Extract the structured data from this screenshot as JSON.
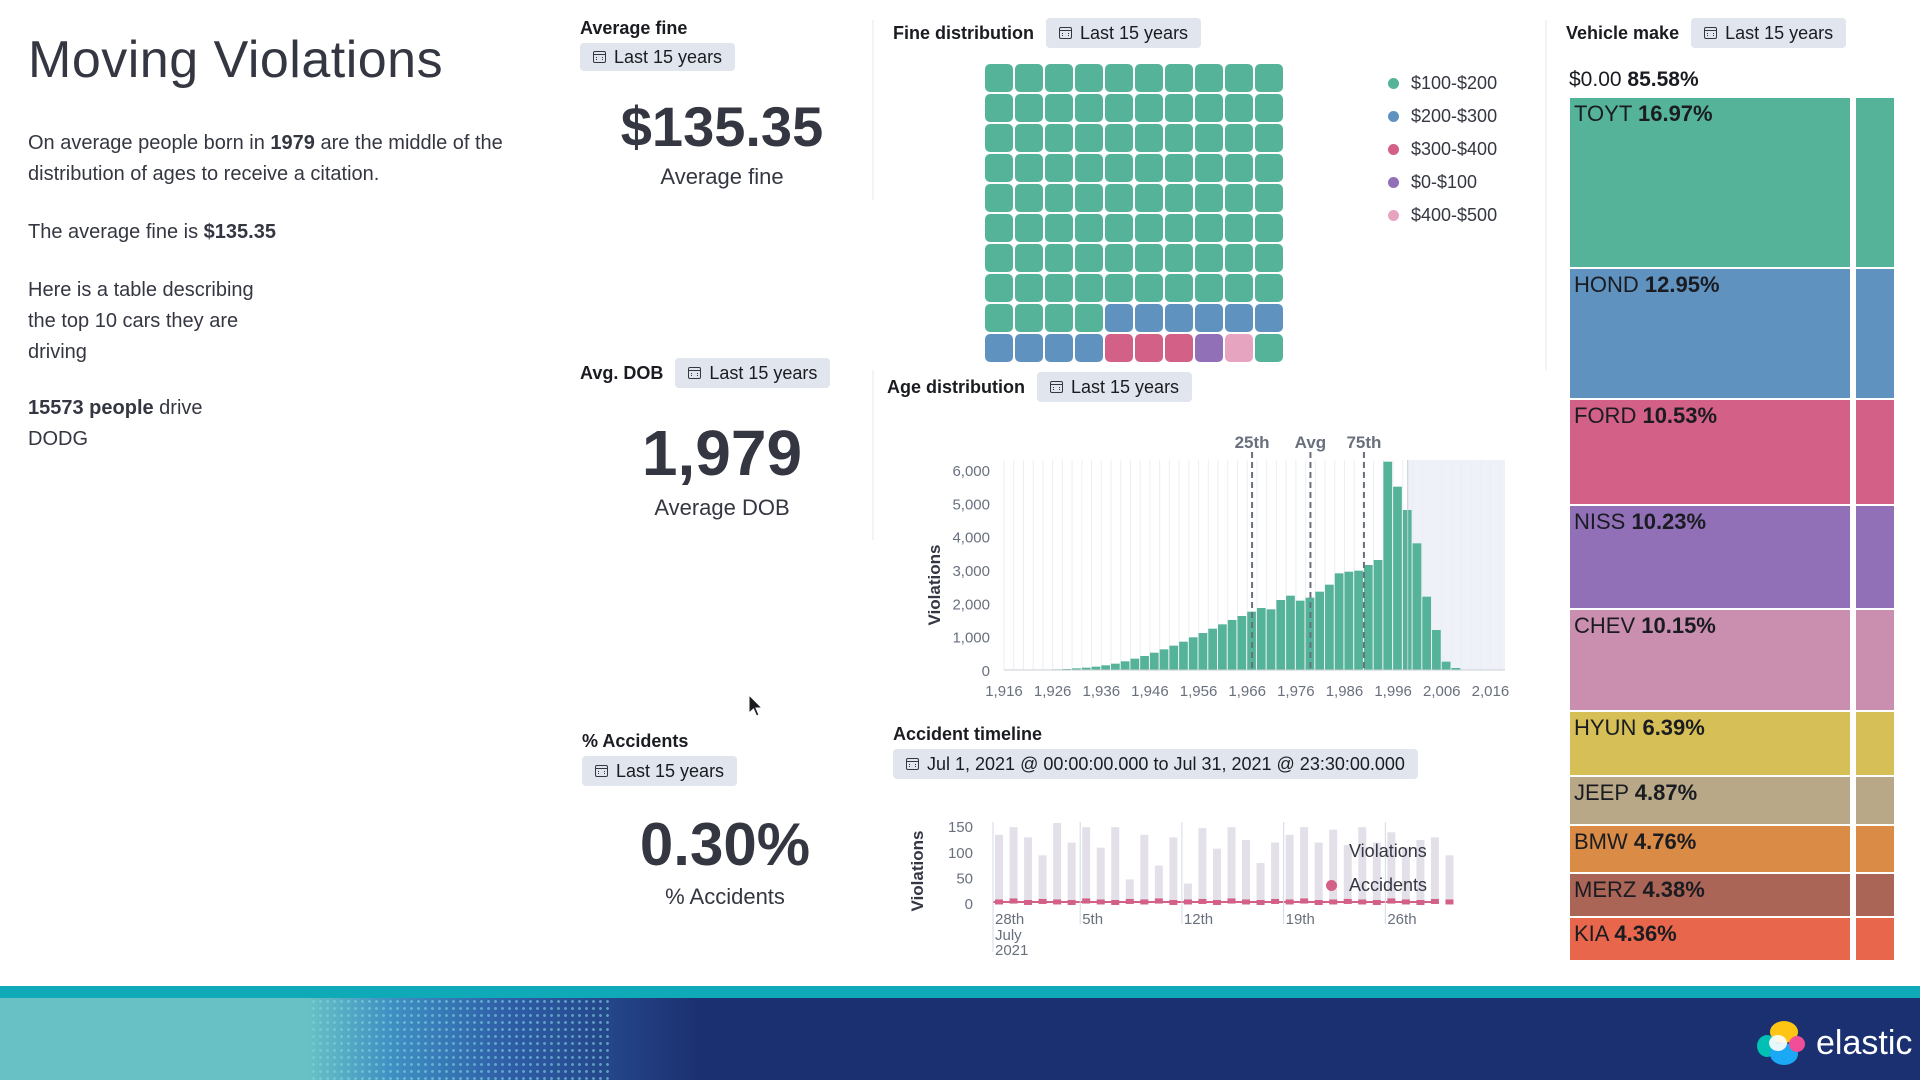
{
  "markdown": {
    "title": "Moving Violations",
    "p1_pre": "On average people born in ",
    "p1_year": "1979",
    "p1_post": " are the middle of the distribution of ages to receive a citation.",
    "p2_pre": "The average fine is ",
    "p2_value": "$135.35",
    "p3": "Here is a table describing the top 10 cars they are driving",
    "p4_bold": "15573 people",
    "p4_post": " drive DODG"
  },
  "panels": {
    "avg_fine": {
      "title": "Average fine",
      "badge": "Last 15 years",
      "value": "$135.35",
      "label": "Average fine"
    },
    "avg_dob": {
      "title": "Avg. DOB",
      "badge": "Last 15 years",
      "value": "1,979",
      "label": "Average DOB"
    },
    "pct_accidents": {
      "title": "% Accidents",
      "badge": "Last 15 years",
      "value": "0.30%",
      "label": "% Accidents"
    },
    "fine_dist": {
      "title": "Fine distribution",
      "badge": "Last 15 years"
    },
    "age_dist": {
      "title": "Age distribution",
      "badge": "Last 15 years"
    },
    "accident_timeline": {
      "title": "Accident timeline",
      "badge": "Jul 1, 2021 @ 00:00:00.000 to Jul 31, 2021 @ 23:30:00.000"
    },
    "vehicle_make": {
      "title": "Vehicle make",
      "badge": "Last 15 years"
    }
  },
  "footer": {
    "logo_text": "elastic"
  },
  "colors": {
    "teal": "#54b399",
    "blue": "#6092c0",
    "red": "#d36086",
    "purple": "#9170b8",
    "pink": "#ca8eae",
    "yellow": "#d6bf57",
    "tan": "#b9a888",
    "orange": "#da8b45",
    "brown": "#aa6556",
    "coral": "#e7664c",
    "footer_navy": "#1b3070",
    "footer_teal": "#0fa9b8"
  },
  "chart_data": [
    {
      "id": "fine_distribution",
      "type": "waffle",
      "total_cells": 100,
      "categories": [
        "$100-$200",
        "$200-$300",
        "$300-$400",
        "$0-$100",
        "$400-$500"
      ],
      "cells": [
        84,
        10,
        3,
        1,
        1
      ],
      "colors": [
        "#54b399",
        "#6092c0",
        "#d36086",
        "#9170b8",
        "#e7a4c0"
      ],
      "legend_position": "right"
    },
    {
      "id": "age_distribution",
      "type": "bar",
      "ylabel": "Violations",
      "xticks": [
        "1,916",
        "1,926",
        "1,936",
        "1,946",
        "1,956",
        "1,966",
        "1,976",
        "1,986",
        "1,996",
        "2,006",
        "2,016"
      ],
      "yticks": [
        "6,000",
        "5,000",
        "4,000",
        "3,000",
        "2,000",
        "1,000",
        "0"
      ],
      "ylim": [
        0,
        6300
      ],
      "xlim": [
        1916,
        2019
      ],
      "bar_start_year": 1922,
      "bar_step_years": 2,
      "values": [
        0,
        10,
        20,
        30,
        50,
        70,
        100,
        140,
        190,
        260,
        340,
        420,
        520,
        620,
        730,
        850,
        980,
        1110,
        1240,
        1370,
        1500,
        1620,
        1750,
        1860,
        1820,
        2100,
        2230,
        2080,
        2170,
        2350,
        2560,
        2900,
        2950,
        2980,
        3150,
        3300,
        6250,
        5500,
        4800,
        3800,
        2200,
        1200,
        250,
        60
      ],
      "markers": [
        {
          "label": "25th",
          "x": 1967
        },
        {
          "label": "Avg",
          "x": 1979
        },
        {
          "label": "75th",
          "x": 1990
        }
      ],
      "shaded_from": 1999,
      "grid": true
    },
    {
      "id": "accident_timeline",
      "type": "bar",
      "ylabel": "Violations",
      "yticks": [
        "150",
        "100",
        "50",
        "0"
      ],
      "ylim": [
        0,
        160
      ],
      "xticks": [
        "28th",
        "5th",
        "12th",
        "19th",
        "26th"
      ],
      "xtick_sub": [
        "July",
        "2021"
      ],
      "series": [
        {
          "name": "Violations",
          "values": [
            135,
            150,
            130,
            95,
            158,
            120,
            150,
            110,
            150,
            48,
            135,
            75,
            130,
            40,
            148,
            108,
            150,
            125,
            80,
            120,
            135,
            150,
            120,
            145,
            115,
            150,
            120,
            140,
            110,
            125,
            130,
            95
          ]
        },
        {
          "name": "Accidents",
          "values": [
            3,
            5,
            2,
            4,
            3,
            2,
            5,
            3,
            2,
            4,
            3,
            5,
            2,
            3,
            4,
            2,
            5,
            3,
            2,
            4,
            3,
            5,
            2,
            3,
            4,
            3,
            2,
            5,
            3,
            2,
            4,
            3
          ]
        }
      ],
      "series_colors": [
        "#e4e0e9",
        "#d36086"
      ],
      "legend_position": "right"
    },
    {
      "id": "vehicle_make",
      "type": "treemap",
      "header_label": "$0.00",
      "header_pct": "85.58%",
      "items": [
        {
          "name": "TOYT",
          "pct": "16.97%",
          "value": 16.97,
          "color": "#54b399"
        },
        {
          "name": "HOND",
          "pct": "12.95%",
          "value": 12.95,
          "color": "#6092c0"
        },
        {
          "name": "FORD",
          "pct": "10.53%",
          "value": 10.53,
          "color": "#d36086"
        },
        {
          "name": "NISS",
          "pct": "10.23%",
          "value": 10.23,
          "color": "#9170b8"
        },
        {
          "name": "CHEV",
          "pct": "10.15%",
          "value": 10.15,
          "color": "#ca8eae"
        },
        {
          "name": "HYUN",
          "pct": "6.39%",
          "value": 6.39,
          "color": "#d6bf57"
        },
        {
          "name": "JEEP",
          "pct": "4.87%",
          "value": 4.87,
          "color": "#b9a888"
        },
        {
          "name": "BMW",
          "pct": "4.76%",
          "value": 4.76,
          "color": "#da8b45"
        },
        {
          "name": "MERZ",
          "pct": "4.38%",
          "value": 4.38,
          "color": "#aa6556"
        },
        {
          "name": "KIA",
          "pct": "4.36%",
          "value": 4.36,
          "color": "#e7664c"
        }
      ]
    }
  ]
}
